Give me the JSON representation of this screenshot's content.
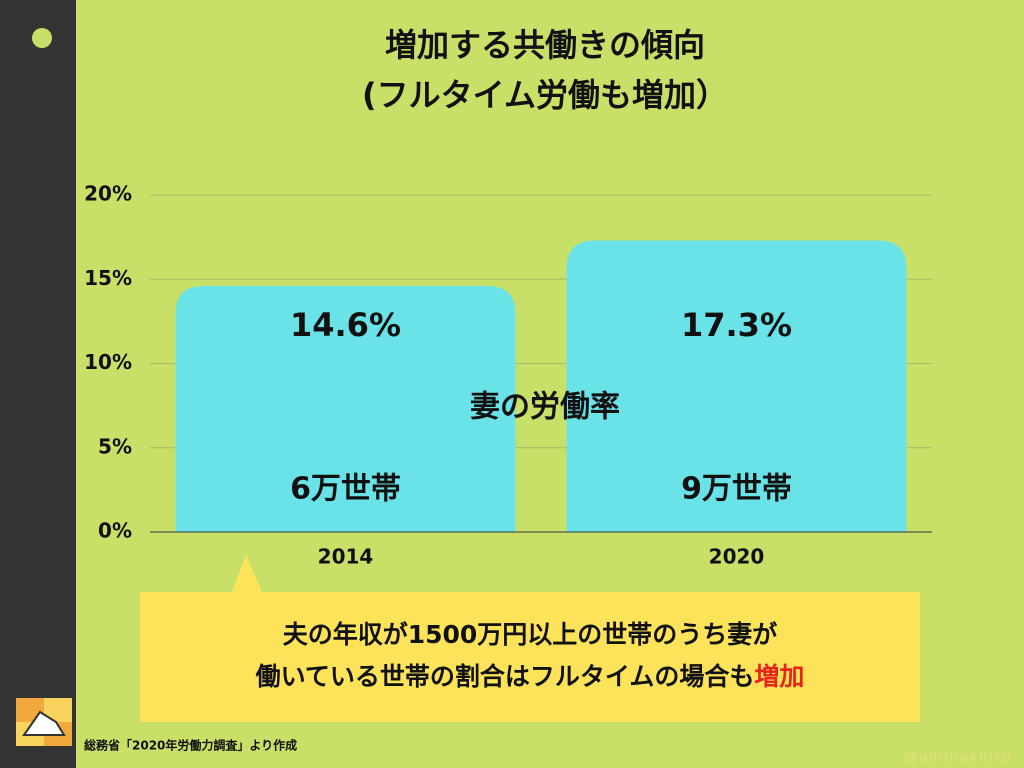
{
  "chart_data": {
    "type": "bar",
    "title": [
      "増加する共働きの傾向",
      "(フルタイム労働も増加）"
    ],
    "categories": [
      "2014",
      "2020"
    ],
    "series": [
      {
        "name": "妻の労働率",
        "color": "#6ae3e8",
        "values": [
          14.6,
          17.3
        ],
        "value_labels": [
          "14.6%",
          "17.3%"
        ]
      }
    ],
    "bar_labels": [
      "6万世帯",
      "9万世帯"
    ],
    "ylim": [
      0,
      20
    ],
    "yticks": [
      {
        "value": 0,
        "label": "0%"
      },
      {
        "value": 5,
        "label": "5%"
      },
      {
        "value": 10,
        "label": "10%"
      },
      {
        "value": 15,
        "label": "15%"
      },
      {
        "value": 20,
        "label": "20%"
      }
    ],
    "grid": true,
    "callout": {
      "line1": "夫の年収が1500万円以上の世帯のうち妻が",
      "line2": "働いている世帯の割合はフルタイムの場合も",
      "highlight": "増加"
    },
    "source": "総務省「2020年労働力調査」より作成",
    "credit": "@uminoxhiro"
  }
}
